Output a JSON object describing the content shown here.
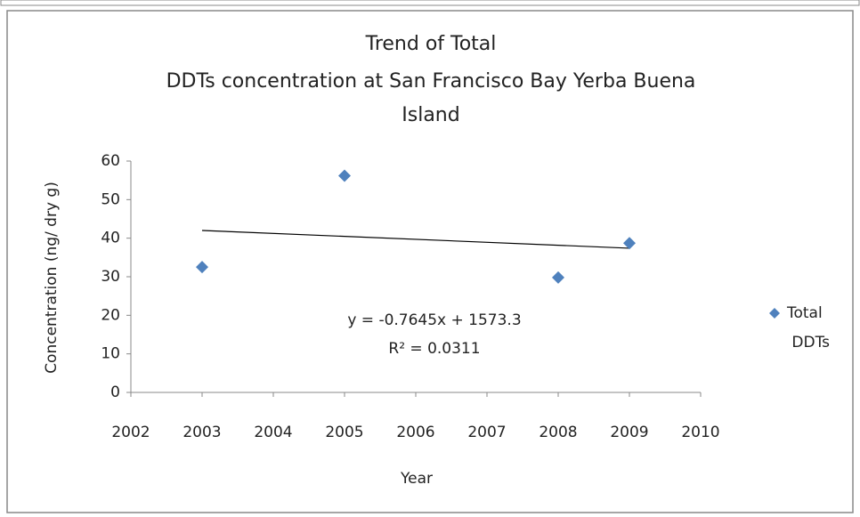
{
  "chart_data": {
    "type": "scatter",
    "title": [
      "Trend of Total",
      "DDTs concentration at San Francisco Bay Yerba Buena",
      "Island"
    ],
    "xlabel": "Year",
    "ylabel": "Concentration (ng/ dry g)",
    "xlim": [
      2002,
      2010
    ],
    "xticks": [
      2002,
      2003,
      2004,
      2005,
      2006,
      2007,
      2008,
      2009,
      2010
    ],
    "ylim": [
      0,
      60
    ],
    "yticks": [
      0,
      10,
      20,
      30,
      40,
      50,
      60
    ],
    "grid": false,
    "legend": "right",
    "series": [
      {
        "name": "Total DDTs",
        "color": "#4f81bd",
        "x": [
          2003,
          2005,
          2008,
          2009
        ],
        "values": [
          32.5,
          56.2,
          29.8,
          38.7
        ]
      }
    ],
    "trendline": {
      "color": "#000000",
      "x": [
        2003,
        2009
      ],
      "values": [
        42.0,
        37.4
      ]
    },
    "annotations": [
      "y = -0.7645x + 1573.3",
      "R² = 0.0311"
    ]
  }
}
